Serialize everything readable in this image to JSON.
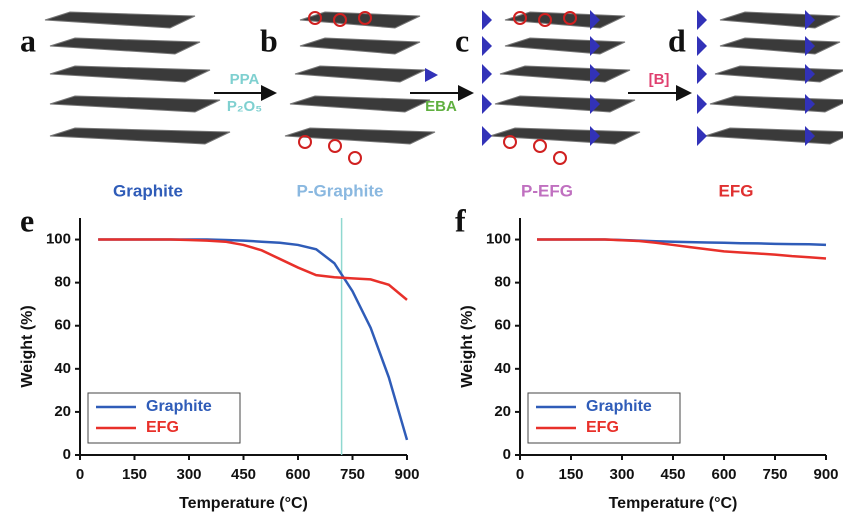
{
  "schematic": {
    "panels": [
      "a",
      "b",
      "c",
      "d"
    ],
    "names": [
      "Graphite",
      "P-Graphite",
      "P-EFG",
      "EFG"
    ],
    "arrows": [
      {
        "top": "PPA",
        "bottom": "P₂O₅"
      },
      {
        "bottom": "EBA"
      },
      {
        "top": "[B]"
      }
    ]
  },
  "chart_data": [
    {
      "type": "line",
      "label": "e",
      "xlabel": "Temperature (°C)",
      "ylabel": "Weight (%)",
      "x": [
        50,
        100,
        150,
        200,
        250,
        300,
        350,
        400,
        450,
        500,
        550,
        600,
        650,
        700,
        750,
        800,
        850,
        900
      ],
      "series": [
        {
          "name": "Graphite",
          "color": "#2f5cb8",
          "values": [
            100,
            100,
            100,
            100,
            100,
            100,
            100,
            99.8,
            99.5,
            99,
            98.5,
            97.5,
            95.5,
            89,
            76,
            59,
            36,
            7
          ]
        },
        {
          "name": "EFG",
          "color": "#e8302a",
          "values": [
            100,
            100,
            100,
            100,
            100,
            99.8,
            99.5,
            99,
            97.5,
            95,
            91,
            87,
            83.5,
            82.5,
            82,
            81.5,
            79,
            72
          ]
        }
      ],
      "vline": 720,
      "vline_color": "#8fd8d0",
      "xlim": [
        0,
        900
      ],
      "xticks": [
        0,
        150,
        300,
        450,
        600,
        750,
        900
      ],
      "ylim": [
        0,
        110
      ],
      "yticks": [
        0,
        20,
        40,
        60,
        80,
        100
      ],
      "legend": "lower-left"
    },
    {
      "type": "line",
      "label": "f",
      "xlabel": "Temperature (°C)",
      "ylabel": "Weight (%)",
      "x": [
        50,
        100,
        150,
        200,
        250,
        300,
        350,
        400,
        450,
        500,
        550,
        600,
        650,
        700,
        750,
        800,
        850,
        900
      ],
      "series": [
        {
          "name": "Graphite",
          "color": "#2f5cb8",
          "values": [
            100,
            100,
            100,
            100,
            100,
            99.8,
            99.5,
            99.2,
            99,
            98.8,
            98.6,
            98.5,
            98.3,
            98.2,
            98,
            97.9,
            97.8,
            97.5
          ]
        },
        {
          "name": "EFG",
          "color": "#e8302a",
          "values": [
            100,
            100,
            100,
            100,
            100,
            99.7,
            99.3,
            98.5,
            97.5,
            96.5,
            95.5,
            94.5,
            94,
            93.5,
            93,
            92.3,
            91.8,
            91.2
          ]
        }
      ],
      "xlim": [
        0,
        900
      ],
      "xticks": [
        0,
        150,
        300,
        450,
        600,
        750,
        900
      ],
      "ylim": [
        0,
        110
      ],
      "yticks": [
        0,
        20,
        40,
        60,
        80,
        100
      ],
      "legend": "lower-left"
    }
  ]
}
